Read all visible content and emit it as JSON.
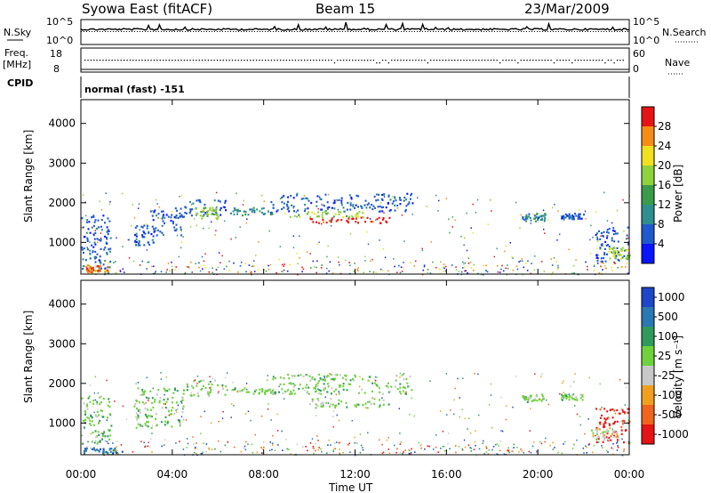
{
  "header": {
    "station": "Syowa East (fitACF)",
    "beam": "Beam 15",
    "date": "23/Mar/2009",
    "cpid_label": "CPID",
    "cpid_value": "normal (fast) -151"
  },
  "top_panels": {
    "nsky": {
      "label": "N.Sky",
      "ticks": [
        "10^5",
        "10^0"
      ],
      "right_label": "N.Search",
      "right_ticks": [
        "10^5",
        "10^0"
      ]
    },
    "freq": {
      "label_line1": "Freq.",
      "label_line2": "[MHz]",
      "ticks": [
        "18",
        "8"
      ],
      "right_label": "Nave",
      "right_ticks": [
        "60",
        "0"
      ]
    }
  },
  "colors": {
    "power_scale": [
      "#0a14ff",
      "#1e5acd",
      "#2f8f8f",
      "#3a9b4a",
      "#8fd23a",
      "#f0e01e",
      "#f58c14",
      "#e61414"
    ],
    "velocity_scale": [
      "#1e46c8",
      "#2a78b4",
      "#2f9a5a",
      "#6ed23c",
      "#c8c8c8",
      "#f0a01e",
      "#f0641e",
      "#e61414"
    ]
  },
  "chart_data": [
    {
      "type": "heatmap",
      "panel": "power",
      "ylabel": "Slant Range [km]",
      "yticks": [
        "1000",
        "2000",
        "3000",
        "4000"
      ],
      "ylim": [
        200,
        4600
      ],
      "xlim": [
        0,
        24
      ],
      "colorbar_label": "Power [dB]",
      "colorbar_ticks": [
        "4",
        "8",
        "12",
        "16",
        "20",
        "24",
        "28"
      ],
      "colorbar_range": [
        0,
        32
      ],
      "patches": [
        {
          "t0": 0.0,
          "t1": 1.3,
          "r0": 250,
          "r1": 1700,
          "level": 1
        },
        {
          "t0": 0.2,
          "t1": 1.2,
          "r0": 250,
          "r1": 450,
          "level": 6
        },
        {
          "t0": 2.3,
          "t1": 3.2,
          "r0": 950,
          "r1": 1450,
          "level": 1
        },
        {
          "t0": 3.0,
          "t1": 4.5,
          "r0": 1200,
          "r1": 1900,
          "level": 1
        },
        {
          "t0": 4.5,
          "t1": 6.4,
          "r0": 1700,
          "r1": 2100,
          "level": 1
        },
        {
          "t0": 5.0,
          "t1": 6.0,
          "r0": 1600,
          "r1": 1900,
          "level": 4
        },
        {
          "t0": 6.5,
          "t1": 8.5,
          "r0": 1700,
          "r1": 1900,
          "level": 2
        },
        {
          "t0": 8.3,
          "t1": 14.5,
          "r0": 1800,
          "r1": 2250,
          "level": 1
        },
        {
          "t0": 9.0,
          "t1": 12.5,
          "r0": 1650,
          "r1": 1800,
          "level": 4
        },
        {
          "t0": 10.0,
          "t1": 13.5,
          "r0": 1500,
          "r1": 1650,
          "level": 7
        },
        {
          "t0": 19.3,
          "t1": 20.3,
          "r0": 1550,
          "r1": 1750,
          "level": 2
        },
        {
          "t0": 21.0,
          "t1": 22.0,
          "r0": 1600,
          "r1": 1750,
          "level": 1
        },
        {
          "t0": 22.5,
          "t1": 24.0,
          "r0": 500,
          "r1": 1400,
          "level": 1
        },
        {
          "t0": 23.0,
          "t1": 24.0,
          "r0": 600,
          "r1": 900,
          "level": 4
        }
      ]
    },
    {
      "type": "heatmap",
      "panel": "velocity",
      "ylabel": "Slant Range [km]",
      "yticks": [
        "1000",
        "2000",
        "3000",
        "4000"
      ],
      "ylim": [
        200,
        4600
      ],
      "xlim": [
        0,
        24
      ],
      "colorbar_label": "Velocity [m s⁻¹]",
      "colorbar_ticks": [
        "1000",
        "500",
        "100",
        "25",
        "-25",
        "-100",
        "-500",
        "-1000"
      ],
      "patches": [
        {
          "t0": 0.0,
          "t1": 1.3,
          "r0": 500,
          "r1": 1700,
          "level": 4
        },
        {
          "t0": 0.1,
          "t1": 1.8,
          "r0": 250,
          "r1": 400,
          "level": 6
        },
        {
          "t0": 2.3,
          "t1": 4.5,
          "r0": 900,
          "r1": 1900,
          "level": 4
        },
        {
          "t0": 4.5,
          "t1": 6.4,
          "r0": 1700,
          "r1": 2100,
          "level": 4
        },
        {
          "t0": 6.5,
          "t1": 8.5,
          "r0": 1750,
          "r1": 1900,
          "level": 4
        },
        {
          "t0": 8.3,
          "t1": 14.5,
          "r0": 1750,
          "r1": 2250,
          "level": 4
        },
        {
          "t0": 10.0,
          "t1": 13.5,
          "r0": 1400,
          "r1": 1650,
          "level": 4
        },
        {
          "t0": 19.3,
          "t1": 20.3,
          "r0": 1550,
          "r1": 1750,
          "level": 4
        },
        {
          "t0": 21.0,
          "t1": 22.0,
          "r0": 1600,
          "r1": 1750,
          "level": 4
        },
        {
          "t0": 22.5,
          "t1": 24.0,
          "r0": 500,
          "r1": 1400,
          "level": 0
        },
        {
          "t0": 22.3,
          "t1": 23.5,
          "r0": 600,
          "r1": 900,
          "level": 3
        }
      ]
    }
  ],
  "xaxis": {
    "label": "Time UT",
    "ticks": [
      "00:00",
      "04:00",
      "08:00",
      "12:00",
      "16:00",
      "20:00",
      "00:00"
    ]
  }
}
